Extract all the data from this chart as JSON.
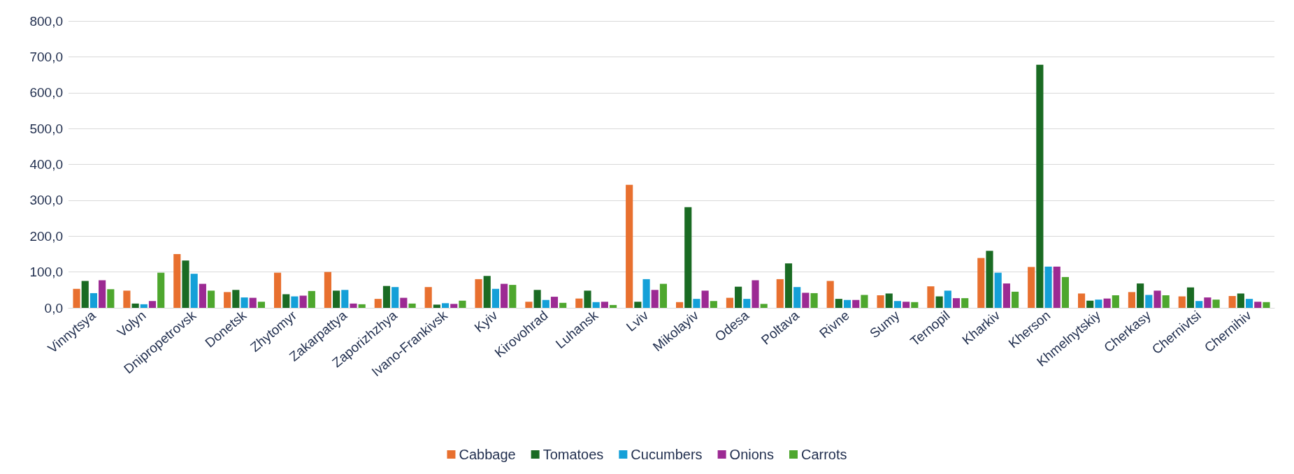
{
  "chart_data": {
    "type": "bar",
    "categories": [
      "Vinnytsya",
      "Volyn",
      "Dnipropetrovsk",
      "Donetsk",
      "Zhytomyr",
      "Zakarpattya",
      "Zaporizhzhya",
      "Ivano-Frankivsk",
      "Kyiv",
      "Kirovohrad",
      "Luhansk",
      "Lviv",
      "Mikolayiv",
      "Odesa",
      "Poltava",
      "Rivne",
      "Sumy",
      "Ternopil",
      "Kharkiv",
      "Kherson",
      "Khmelnytskiy",
      "Cherkasy",
      "Chernivtsi",
      "Chernihiv"
    ],
    "series": [
      {
        "name": "Cabbage",
        "color": "#e8702f",
        "values": [
          53,
          48,
          150,
          44,
          98,
          100,
          25,
          58,
          80,
          17,
          26,
          343,
          16,
          28,
          80,
          75,
          35,
          60,
          139,
          114,
          40,
          44,
          32,
          33
        ]
      },
      {
        "name": "Tomatoes",
        "color": "#1a6b23",
        "values": [
          75,
          12,
          132,
          50,
          38,
          48,
          61,
          9,
          89,
          50,
          48,
          17,
          281,
          59,
          124,
          25,
          40,
          32,
          159,
          678,
          20,
          68,
          57,
          40
        ]
      },
      {
        "name": "Cucumbers",
        "color": "#14a0d8",
        "values": [
          41,
          10,
          95,
          29,
          32,
          50,
          58,
          13,
          53,
          22,
          16,
          80,
          25,
          25,
          58,
          22,
          19,
          48,
          98,
          115,
          23,
          36,
          19,
          25
        ]
      },
      {
        "name": "Onions",
        "color": "#9c2a93",
        "values": [
          77,
          19,
          67,
          28,
          34,
          12,
          28,
          11,
          67,
          31,
          17,
          50,
          48,
          77,
          42,
          22,
          17,
          27,
          68,
          115,
          26,
          48,
          29,
          17
        ]
      },
      {
        "name": "Carrots",
        "color": "#4ea72e",
        "values": [
          52,
          98,
          48,
          17,
          47,
          10,
          12,
          20,
          64,
          14,
          8,
          67,
          19,
          11,
          41,
          36,
          16,
          27,
          45,
          86,
          35,
          35,
          23,
          16
        ]
      }
    ],
    "ylim": [
      0,
      800
    ],
    "yticks": [
      {
        "value": 0,
        "label": "0,0"
      },
      {
        "value": 100,
        "label": "100,0"
      },
      {
        "value": 200,
        "label": "200,0"
      },
      {
        "value": 300,
        "label": "300,0"
      },
      {
        "value": 400,
        "label": "400,0"
      },
      {
        "value": 500,
        "label": "500,0"
      },
      {
        "value": 600,
        "label": "600,0"
      },
      {
        "value": 700,
        "label": "700,0"
      },
      {
        "value": 800,
        "label": "800,0"
      }
    ],
    "grid": "y",
    "legend": "bottom"
  }
}
